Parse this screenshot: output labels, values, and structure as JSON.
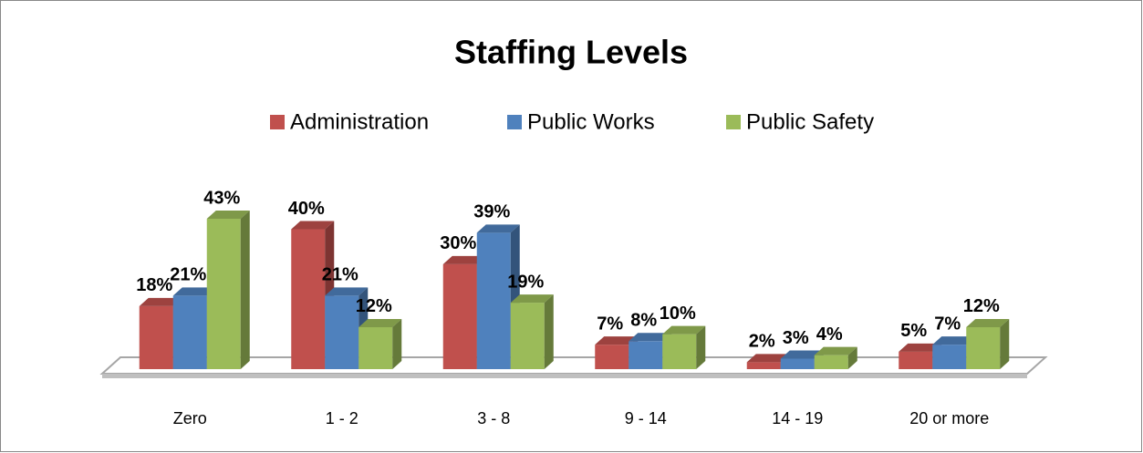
{
  "chart_data": {
    "type": "bar3d",
    "title": "Staffing Levels",
    "categories": [
      "Zero",
      "1 - 2",
      "3 - 8",
      "9 - 14",
      "14 - 19",
      "20 or more"
    ],
    "series": [
      {
        "name": "Administration",
        "color": "#c0504d",
        "values": [
          18,
          40,
          30,
          7,
          2,
          5
        ],
        "value_labels": [
          "18%",
          "40%",
          "30%",
          "7%",
          "2%",
          "5%"
        ]
      },
      {
        "name": "Public Works",
        "color": "#4f81bd",
        "values": [
          21,
          21,
          39,
          8,
          3,
          7
        ],
        "value_labels": [
          "21%",
          "21%",
          "39%",
          "8%",
          "3%",
          "7%"
        ]
      },
      {
        "name": "Public Safety",
        "color": "#9bbb59",
        "values": [
          43,
          12,
          19,
          10,
          4,
          12
        ],
        "value_labels": [
          "43%",
          "12%",
          "19%",
          "10%",
          "4%",
          "12%"
        ]
      }
    ],
    "legend": "top"
  }
}
